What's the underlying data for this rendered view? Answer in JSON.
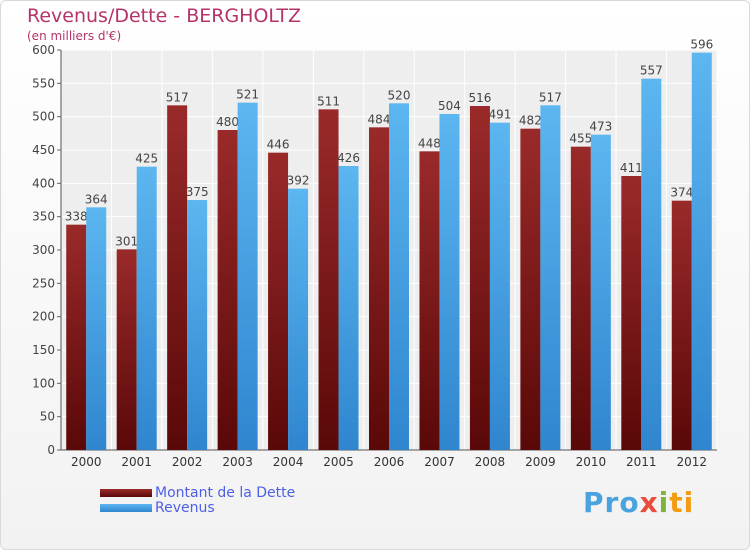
{
  "chart_data": {
    "type": "bar",
    "title": "Revenus/Dette - BERGHOLTZ",
    "subtitle": "(en milliers d'€)",
    "categories": [
      "2000",
      "2001",
      "2002",
      "2003",
      "2004",
      "2005",
      "2006",
      "2007",
      "2008",
      "2009",
      "2010",
      "2011",
      "2012"
    ],
    "series": [
      {
        "name": "Montant de la Dette",
        "color": "#7a1a1a",
        "values": [
          338,
          301,
          517,
          480,
          446,
          511,
          484,
          448,
          516,
          482,
          455,
          411,
          374
        ]
      },
      {
        "name": "Revenus",
        "color": "#4aa3e6",
        "values": [
          364,
          425,
          375,
          521,
          392,
          426,
          520,
          504,
          491,
          517,
          473,
          557,
          596
        ]
      }
    ],
    "ylim": [
      0,
      600
    ],
    "yticks": [
      0,
      50,
      100,
      150,
      200,
      250,
      300,
      350,
      400,
      450,
      500,
      550,
      600
    ],
    "grid": true,
    "legend_position": "bottom-left"
  },
  "branding": {
    "part1": "Pro",
    "part2": "x",
    "part3": "i",
    "part4": "ti"
  }
}
